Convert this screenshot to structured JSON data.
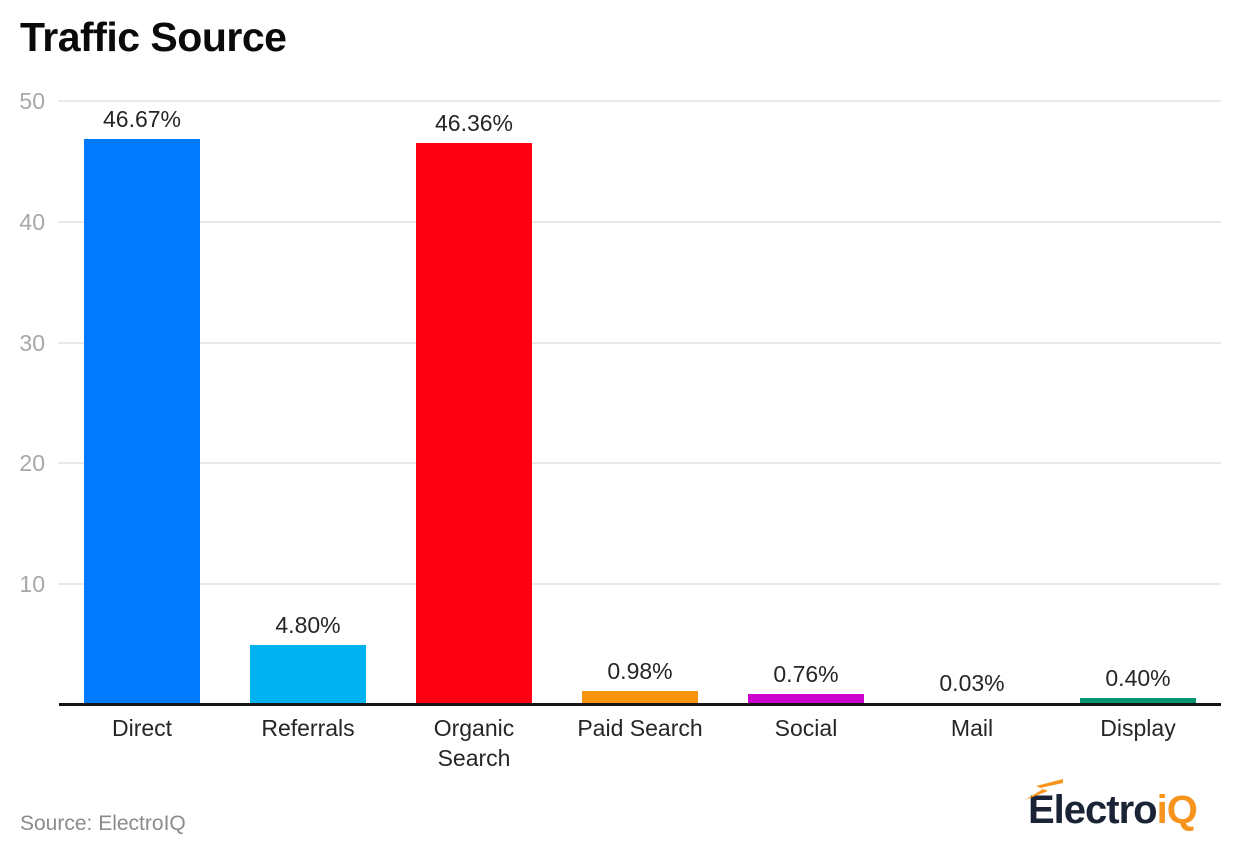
{
  "chart_data": {
    "type": "bar",
    "title": "Traffic Source",
    "categories": [
      "Direct",
      "Referrals",
      "Organic Search",
      "Paid Search",
      "Social",
      "Mail",
      "Display"
    ],
    "values": [
      46.67,
      4.8,
      46.36,
      0.98,
      0.76,
      0.03,
      0.4
    ],
    "value_labels": [
      "46.67%",
      "4.80%",
      "46.36%",
      "0.98%",
      "0.76%",
      "0.03%",
      "0.40%"
    ],
    "bar_colors": [
      "#007bff",
      "#00b2f0",
      "#ff0013",
      "#f8940c",
      "#cc00cc",
      null,
      "#009470"
    ],
    "xlabel": "",
    "ylabel": "",
    "ylim": [
      0,
      50
    ],
    "yticks": [
      10,
      20,
      30,
      40,
      50
    ],
    "grid": "horizontal",
    "legend": "none",
    "unit": "%"
  },
  "footer": {
    "source_text": "Source: ElectroIQ",
    "logo": {
      "dark": "Electro",
      "accent": "iQ"
    }
  },
  "colors": {
    "background": "#ffffff",
    "title_text": "#0a0a0a",
    "gridline": "#e9e9e9",
    "axis_line": "#161616",
    "tick_label": "#a8a8a8",
    "value_label": "#262626",
    "category_label": "#262626",
    "source_text": "#8c8c8c",
    "logo_dark": "#1b2436",
    "logo_accent": "#f7941e"
  }
}
